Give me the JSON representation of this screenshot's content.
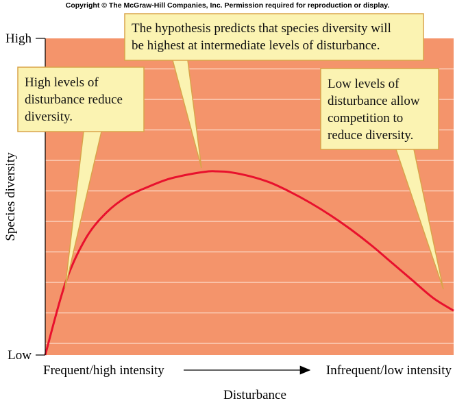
{
  "copyright": "Copyright © The McGraw-Hill Companies, Inc. Permission required for reproduction or display.",
  "chart_data": {
    "type": "line",
    "xlabel": "Disturbance",
    "ylabel": "Species diversity",
    "x_endpoints": [
      "Frequent/high intensity",
      "Infrequent/low intensity"
    ],
    "y_ticks": [
      "Low",
      "High"
    ],
    "xlim": [
      0,
      1
    ],
    "ylim": [
      0,
      1
    ],
    "grid": true,
    "series": [
      {
        "x": [
          0.0,
          0.05,
          0.1,
          0.15,
          0.2,
          0.25,
          0.3,
          0.35,
          0.4,
          0.42,
          0.45,
          0.5,
          0.55,
          0.6,
          0.65,
          0.7,
          0.75,
          0.8,
          0.85,
          0.9,
          0.95,
          1.0
        ],
        "y": [
          0.0,
          0.23,
          0.37,
          0.45,
          0.5,
          0.53,
          0.555,
          0.57,
          0.58,
          0.58,
          0.578,
          0.565,
          0.545,
          0.515,
          0.48,
          0.44,
          0.395,
          0.345,
          0.29,
          0.235,
          0.18,
          0.14
        ]
      }
    ],
    "colors": {
      "background": "#f4946b",
      "grid": "#fbd0bb",
      "curve": "#e8112d",
      "callout_fill": "#fbf3b2",
      "callout_border": "#d9a44a"
    },
    "annotations": [
      {
        "lines": [
          "The hypothesis predicts that species diversity will",
          "be highest at intermediate levels of disturbance."
        ],
        "target_x": 0.38
      },
      {
        "lines": [
          "High levels of",
          "disturbance reduce",
          "diversity."
        ],
        "target_x": 0.05
      },
      {
        "lines": [
          "Low levels of",
          "disturbance allow",
          "competition to",
          "reduce diversity."
        ],
        "target_x": 0.98
      }
    ]
  }
}
